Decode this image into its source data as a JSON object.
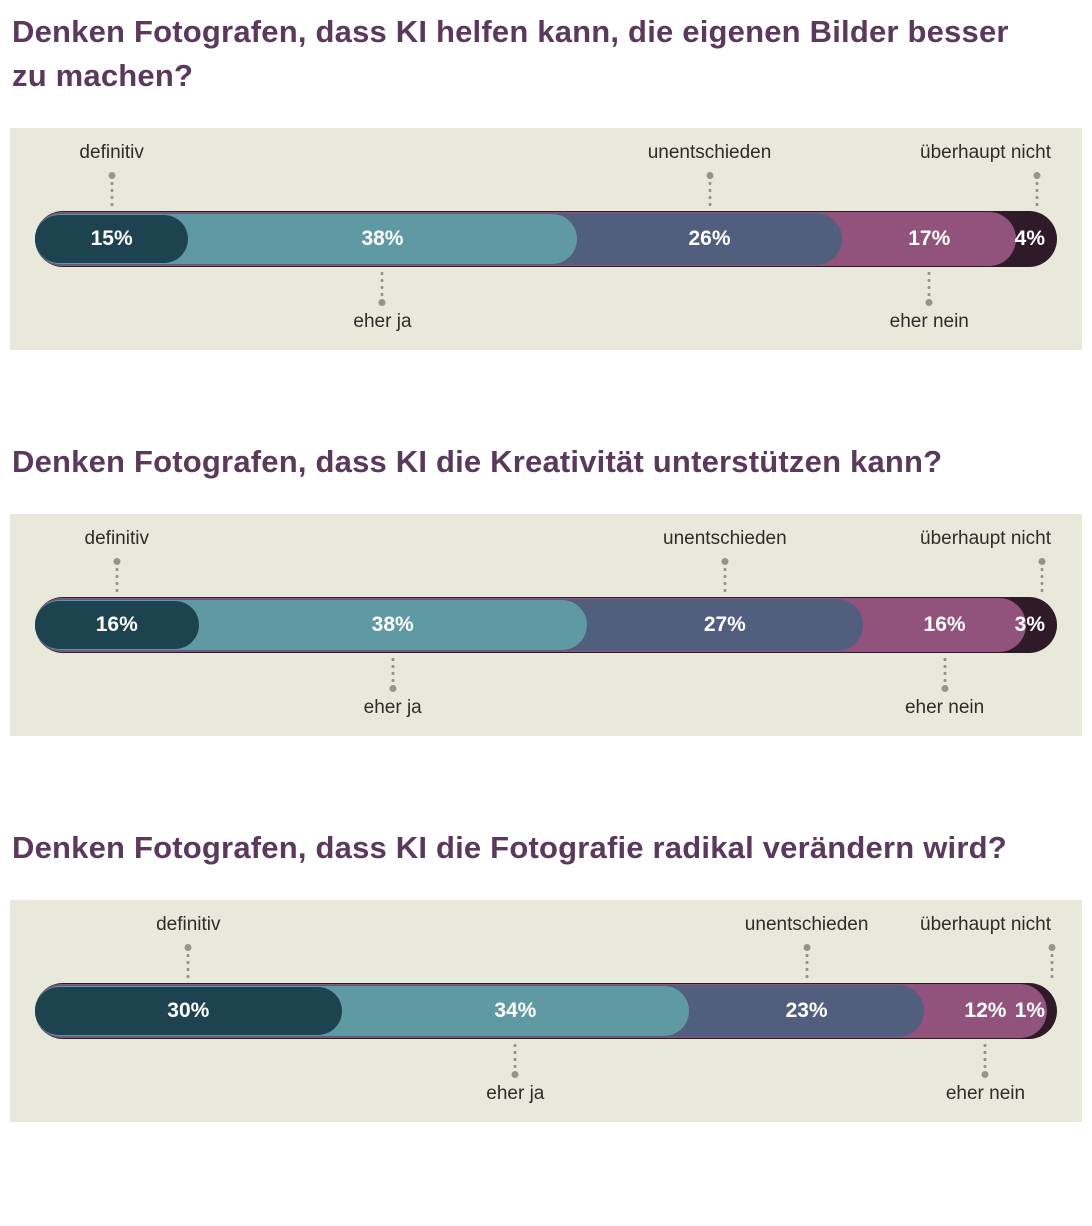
{
  "page": {
    "background": "#ffffff",
    "card_background": "#e9e9db",
    "title_color": "#5a395c",
    "label_color": "#2d2d29",
    "leader_dot_color": "#94948d",
    "percent_text_color": "#ffffff"
  },
  "chart_data": [
    {
      "type": "bar",
      "variant": "horizontal-stacked-likert",
      "title": "Denken Fotografen, dass KI helfen kann, die eigenen Bilder besser zu machen?",
      "unit": "%",
      "xlim": [
        0,
        100
      ],
      "legend_position": "none",
      "grid": false,
      "categories": [
        "definitiv",
        "eher ja",
        "unentschieden",
        "eher nein",
        "überhaupt nicht"
      ],
      "values": [
        15,
        38,
        26,
        17,
        4
      ],
      "value_labels": [
        "15%",
        "38%",
        "26%",
        "17%",
        "4%"
      ],
      "colors": [
        "#1e4350",
        "#5f9aa4",
        "#525e7e",
        "#91537b",
        "#2f1a27"
      ],
      "label_sides": [
        "top",
        "bottom",
        "top",
        "bottom",
        "top"
      ]
    },
    {
      "type": "bar",
      "variant": "horizontal-stacked-likert",
      "title": "Denken Fotografen, dass KI die Kreativität unterstützen kann?",
      "unit": "%",
      "xlim": [
        0,
        100
      ],
      "legend_position": "none",
      "grid": false,
      "categories": [
        "definitiv",
        "eher ja",
        "unentschieden",
        "eher nein",
        "überhaupt nicht"
      ],
      "values": [
        16,
        38,
        27,
        16,
        3
      ],
      "value_labels": [
        "16%",
        "38%",
        "27%",
        "16%",
        "3%"
      ],
      "colors": [
        "#1e4350",
        "#5f9aa4",
        "#525e7e",
        "#91537b",
        "#2f1a27"
      ],
      "label_sides": [
        "top",
        "bottom",
        "top",
        "bottom",
        "top"
      ]
    },
    {
      "type": "bar",
      "variant": "horizontal-stacked-likert",
      "title": "Denken Fotografen, dass KI die Fotografie radikal verändern wird?",
      "unit": "%",
      "xlim": [
        0,
        100
      ],
      "legend_position": "none",
      "grid": false,
      "categories": [
        "definitiv",
        "eher ja",
        "unentschieden",
        "eher nein",
        "überhaupt nicht"
      ],
      "values": [
        30,
        34,
        23,
        12,
        1
      ],
      "value_labels": [
        "30%",
        "34%",
        "23%",
        "12%",
        "1%"
      ],
      "colors": [
        "#1e4350",
        "#5f9aa4",
        "#525e7e",
        "#91537b",
        "#2f1a27"
      ],
      "label_sides": [
        "top",
        "bottom",
        "top",
        "bottom",
        "top"
      ]
    }
  ]
}
